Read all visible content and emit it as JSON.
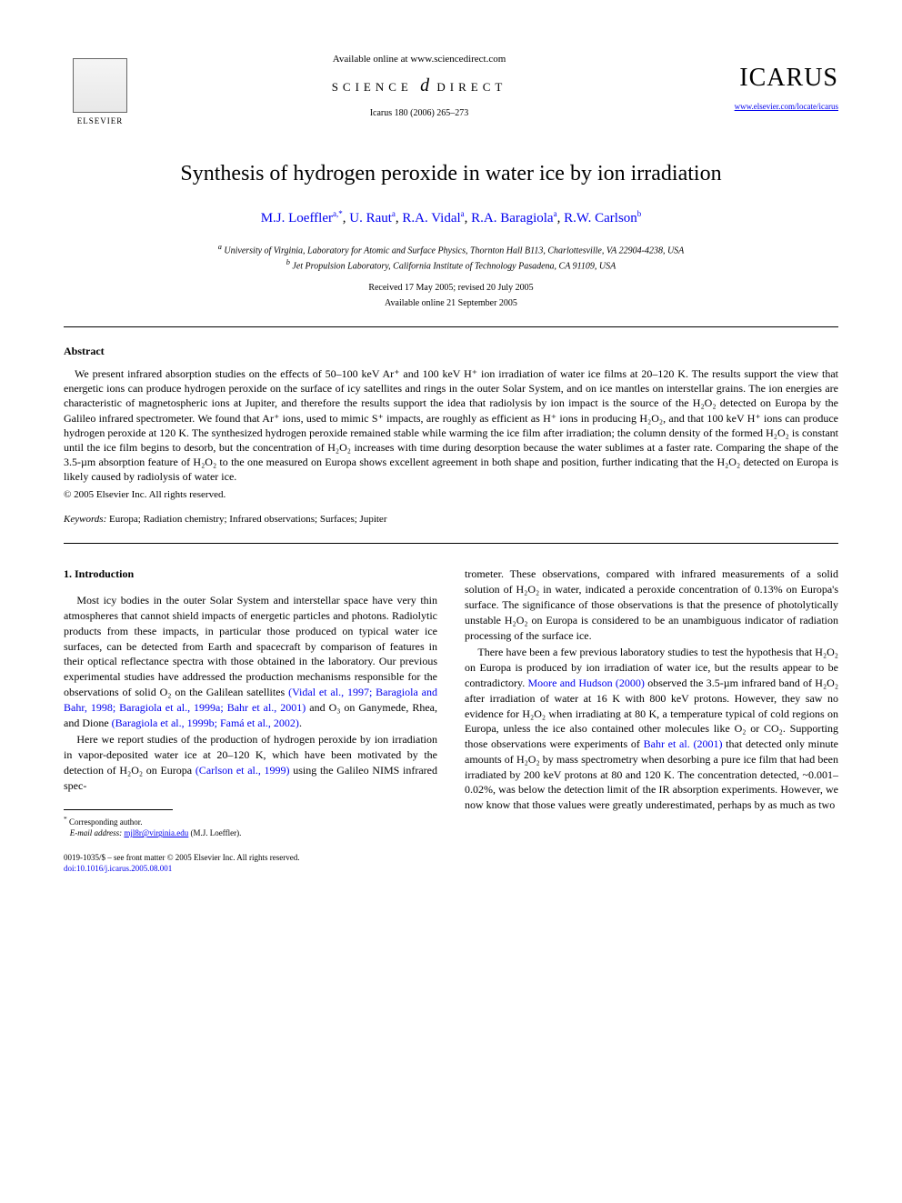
{
  "header": {
    "elsevier": "ELSEVIER",
    "available_online": "Available online at www.sciencedirect.com",
    "science_left": "SCIENCE",
    "science_right": "DIRECT",
    "citation": "Icarus 180 (2006) 265–273",
    "journal": "ICARUS",
    "journal_url": "www.elsevier.com/locate/icarus"
  },
  "title": "Synthesis of hydrogen peroxide in water ice by ion irradiation",
  "authors": {
    "a1": "M.J. Loeffler",
    "a1_sup": "a,*",
    "a2": "U. Raut",
    "a2_sup": "a",
    "a3": "R.A. Vidal",
    "a3_sup": "a",
    "a4": "R.A. Baragiola",
    "a4_sup": "a",
    "a5": "R.W. Carlson",
    "a5_sup": "b"
  },
  "affiliations": {
    "a": "University of Virginia, Laboratory for Atomic and Surface Physics, Thornton Hall B113, Charlottesville, VA 22904-4238, USA",
    "b": "Jet Propulsion Laboratory, California Institute of Technology Pasadena, CA 91109, USA"
  },
  "dates": {
    "received": "Received 17 May 2005; revised 20 July 2005",
    "online": "Available online 21 September 2005"
  },
  "abstract": {
    "heading": "Abstract",
    "text": "We present infrared absorption studies on the effects of 50–100 keV Ar⁺ and 100 keV H⁺ ion irradiation of water ice films at 20–120 K. The results support the view that energetic ions can produce hydrogen peroxide on the surface of icy satellites and rings in the outer Solar System, and on ice mantles on interstellar grains. The ion energies are characteristic of magnetospheric ions at Jupiter, and therefore the results support the idea that radiolysis by ion impact is the source of the H₂O₂ detected on Europa by the Galileo infrared spectrometer. We found that Ar⁺ ions, used to mimic S⁺ impacts, are roughly as efficient as H⁺ ions in producing H₂O₂, and that 100 keV H⁺ ions can produce hydrogen peroxide at 120 K. The synthesized hydrogen peroxide remained stable while warming the ice film after irradiation; the column density of the formed H₂O₂ is constant until the ice film begins to desorb, but the concentration of H₂O₂ increases with time during desorption because the water sublimes at a faster rate. Comparing the shape of the 3.5-µm absorption feature of H₂O₂ to the one measured on Europa shows excellent agreement in both shape and position, further indicating that the H₂O₂ detected on Europa is likely caused by radiolysis of water ice.",
    "copyright": "© 2005 Elsevier Inc. All rights reserved."
  },
  "keywords": {
    "label": "Keywords:",
    "text": " Europa; Radiation chemistry; Infrared observations; Surfaces; Jupiter"
  },
  "section1": {
    "heading": "1. Introduction",
    "p1_a": "Most icy bodies in the outer Solar System and interstellar space have very thin atmospheres that cannot shield impacts of energetic particles and photons. Radiolytic products from these impacts, in particular those produced on typical water ice surfaces, can be detected from Earth and spacecraft by comparison of features in their optical reflectance spectra with those obtained in the laboratory. Our previous experimental studies have addressed the production mechanisms responsible for the observations of solid O₂ on the Galilean satellites ",
    "p1_c1": "(Vidal et al., 1997; Baragiola and Bahr, 1998; Baragiola et al., 1999a; Bahr et al., 2001)",
    "p1_b": " and O₃ on Ganymede, Rhea, and Dione ",
    "p1_c2": "(Baragiola et al., 1999b; Famá et al., 2002)",
    "p1_c": ".",
    "p2_a": "Here we report studies of the production of hydrogen peroxide by ion irradiation in vapor-deposited water ice at 20–120 K, which have been motivated by the detection of H₂O₂ on Europa ",
    "p2_c1": "(Carlson et al., 1999)",
    "p2_b": " using the Galileo NIMS infrared spec-",
    "p3": "trometer. These observations, compared with infrared measurements of a solid solution of H₂O₂ in water, indicated a peroxide concentration of 0.13% on Europa's surface. The significance of those observations is that the presence of photolytically unstable H₂O₂ on Europa is considered to be an unambiguous indicator of radiation processing of the surface ice.",
    "p4_a": "There have been a few previous laboratory studies to test the hypothesis that H₂O₂ on Europa is produced by ion irradiation of water ice, but the results appear to be contradictory. ",
    "p4_c1": "Moore and Hudson (2000)",
    "p4_b": " observed the 3.5-µm infrared band of H₂O₂ after irradiation of water at 16 K with 800 keV protons. However, they saw no evidence for H₂O₂ when irradiating at 80 K, a temperature typical of cold regions on Europa, unless the ice also contained other molecules like O₂ or CO₂. Supporting those observations were experiments of ",
    "p4_c2": "Bahr et al. (2001)",
    "p4_c": " that detected only minute amounts of H₂O₂ by mass spectrometry when desorbing a pure ice film that had been irradiated by 200 keV protons at 80 and 120 K. The concentration detected, ~0.001–0.02%, was below the detection limit of the IR absorption experiments. However, we now know that those values were greatly underestimated, perhaps by as much as two"
  },
  "footnote": {
    "corr": "Corresponding author.",
    "email_label": "E-mail address:",
    "email": "mjl8r@virginia.edu",
    "name": "(M.J. Loeffler)."
  },
  "bottom": {
    "issn": "0019-1035/$ – see front matter © 2005 Elsevier Inc. All rights reserved.",
    "doi": "doi:10.1016/j.icarus.2005.08.001"
  }
}
